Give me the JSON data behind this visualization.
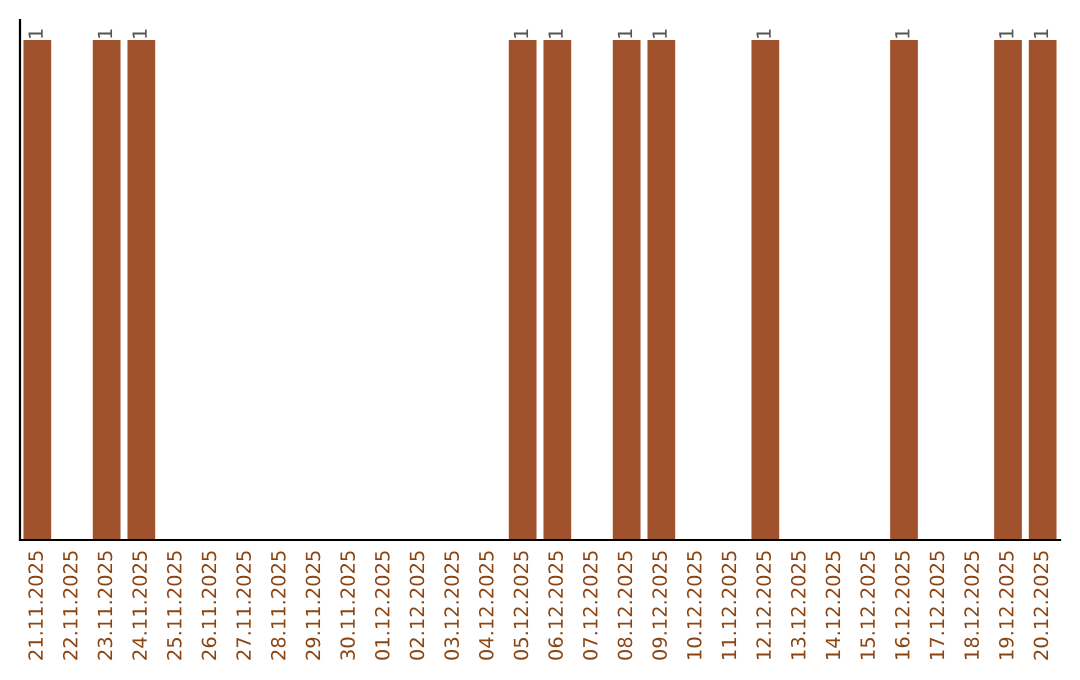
{
  "chart_data": {
    "type": "bar",
    "categories": [
      "21.11.2025",
      "22.11.2025",
      "23.11.2025",
      "24.11.2025",
      "25.11.2025",
      "26.11.2025",
      "27.11.2025",
      "28.11.2025",
      "29.11.2025",
      "30.11.2025",
      "01.12.2025",
      "02.12.2025",
      "03.12.2025",
      "04.12.2025",
      "05.12.2025",
      "06.12.2025",
      "07.12.2025",
      "08.12.2025",
      "09.12.2025",
      "10.12.2025",
      "11.12.2025",
      "12.12.2025",
      "13.12.2025",
      "14.12.2025",
      "15.12.2025",
      "16.12.2025",
      "17.12.2025",
      "18.12.2025",
      "19.12.2025",
      "20.12.2025"
    ],
    "values": [
      1,
      0,
      1,
      1,
      0,
      0,
      0,
      0,
      0,
      0,
      0,
      0,
      0,
      0,
      1,
      1,
      0,
      1,
      1,
      0,
      0,
      1,
      0,
      0,
      0,
      1,
      0,
      0,
      1,
      1
    ],
    "value_labels": [
      "1",
      null,
      "1",
      "1",
      null,
      null,
      null,
      null,
      null,
      null,
      null,
      null,
      null,
      null,
      "1",
      "1",
      null,
      "1",
      "1",
      null,
      null,
      "1",
      null,
      null,
      null,
      "1",
      null,
      null,
      "1",
      "1"
    ],
    "color": "#a0522d",
    "tick_labels": "x",
    "grid": false,
    "legend": false
  }
}
